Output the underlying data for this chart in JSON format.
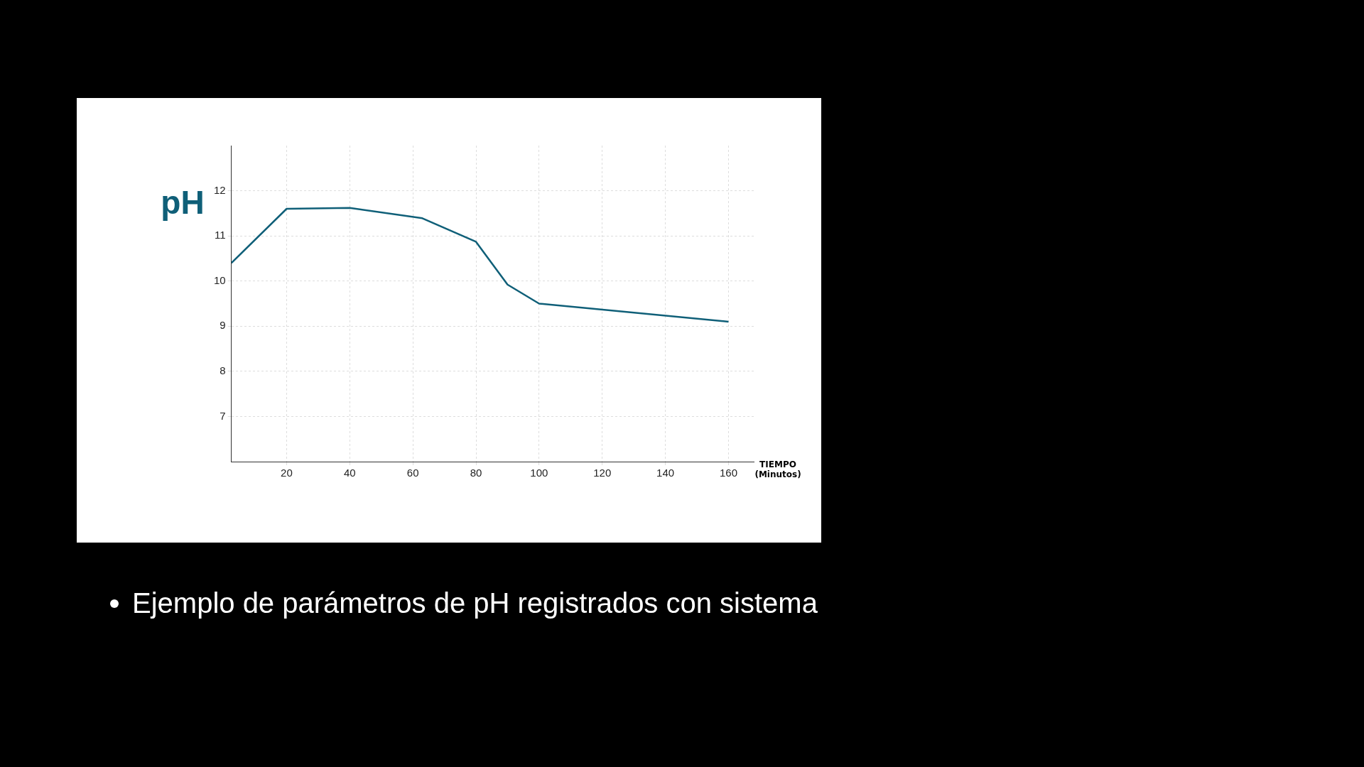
{
  "chart_data": {
    "type": "line",
    "ylabel": "pH",
    "xlabel": "TIEMPO\n(Minutos)",
    "x": [
      2.5,
      20,
      40,
      63,
      80,
      90,
      100,
      160
    ],
    "values": [
      10.4,
      11.6,
      11.62,
      11.39,
      10.87,
      9.92,
      9.5,
      9.1
    ],
    "color": "#0f5f78",
    "marker": "none",
    "grid": true,
    "xlim": [
      2.5,
      168
    ],
    "xticks": [
      20,
      40,
      60,
      80,
      100,
      120,
      140,
      160
    ],
    "ylim": [
      6,
      13
    ],
    "yticks": [
      7,
      8,
      9,
      10,
      11,
      12
    ],
    "annotations": [
      "Ejemplo de parámetros de pH registrados con sistema"
    ]
  }
}
